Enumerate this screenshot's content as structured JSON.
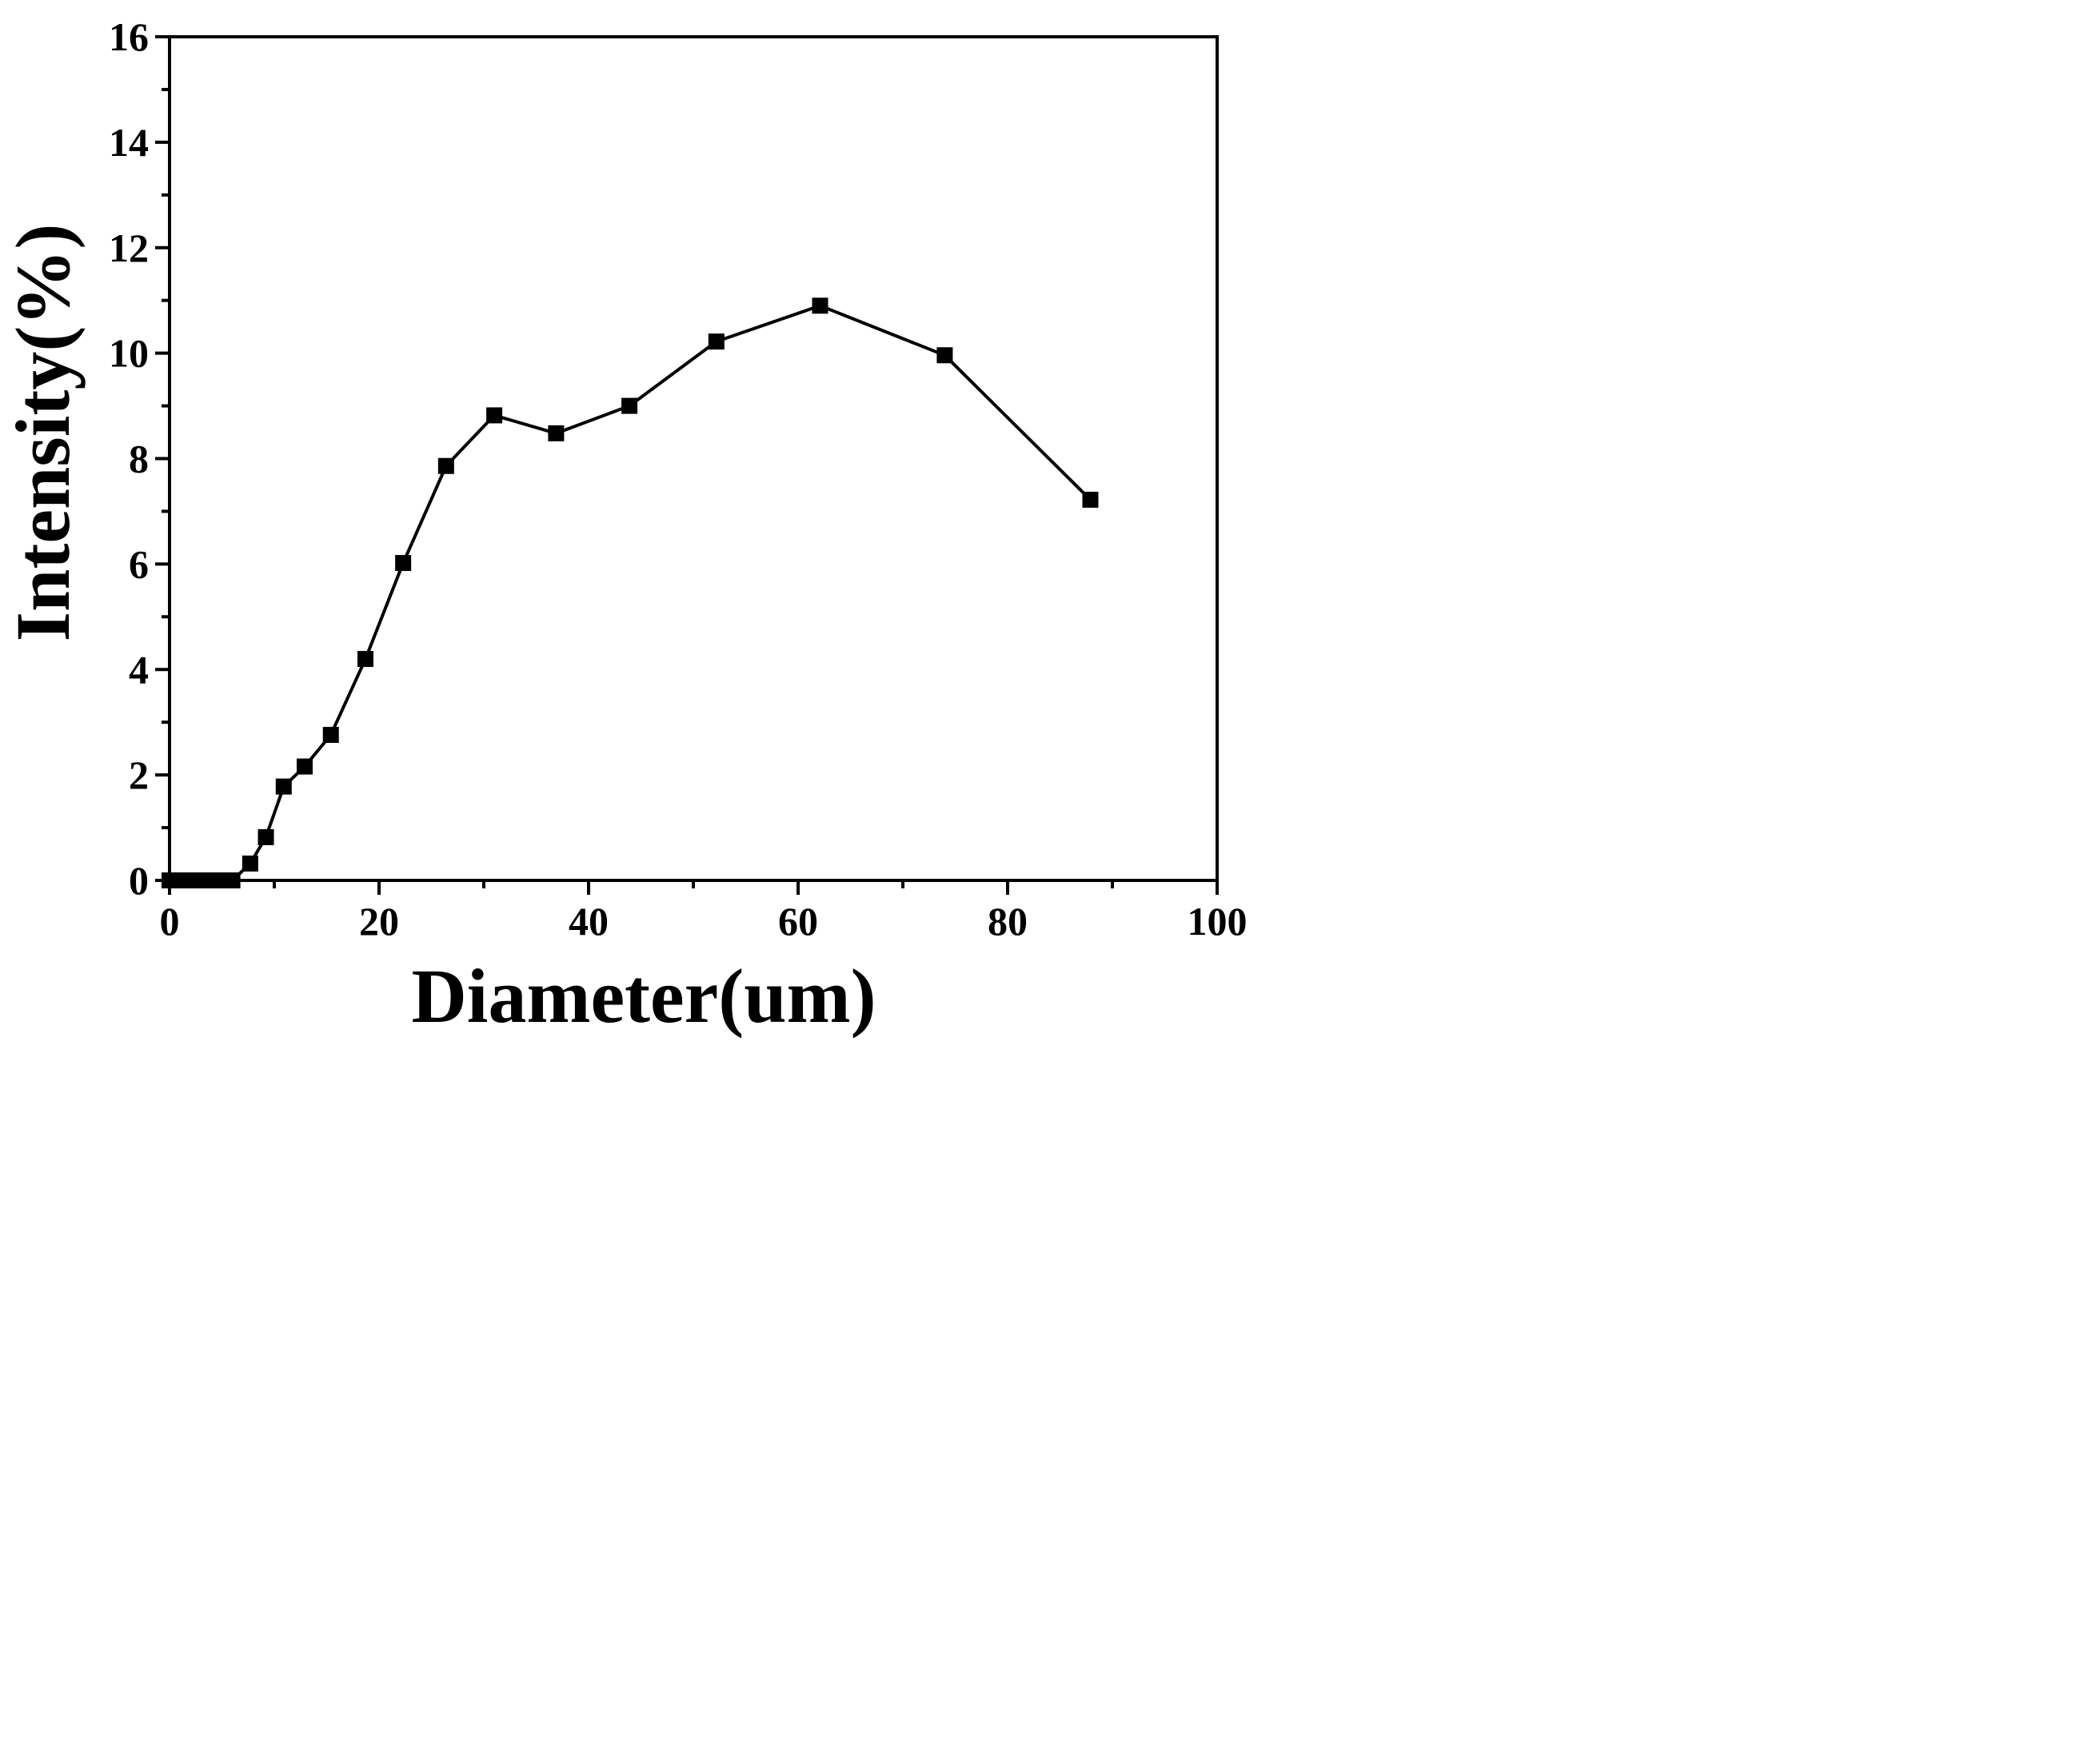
{
  "chart_data": {
    "type": "line",
    "title": "",
    "xlabel": "Diameter(um)",
    "ylabel": "Intensity(%)",
    "xlim": [
      0,
      100
    ],
    "ylim": [
      0,
      16
    ],
    "xticks": [
      0,
      20,
      40,
      60,
      80,
      100
    ],
    "xtick_labels": [
      "0",
      "20",
      "40",
      "60",
      "80",
      "100"
    ],
    "yticks": [
      0,
      2,
      4,
      6,
      8,
      10,
      12,
      14,
      16
    ],
    "ytick_labels": [
      "0",
      "2",
      "4",
      "6",
      "8",
      "10",
      "12",
      "14",
      "16"
    ],
    "x_minor_step": 10,
    "y_minor_step": 1,
    "grid": false,
    "legend": "none",
    "marker": "square",
    "line_color": "#000000",
    "marker_color": "#000000",
    "series": [
      {
        "x": [
          0,
          1,
          2,
          3,
          4,
          5,
          6,
          7.7,
          9.2,
          10.9,
          12.9,
          15.4,
          18.7,
          22.3,
          26.4,
          31.0,
          36.9,
          43.9,
          52.2,
          62.1,
          74.0,
          87.9
        ],
        "values": [
          0,
          0,
          0,
          0,
          0,
          0,
          0,
          0.32,
          0.82,
          1.78,
          2.16,
          2.76,
          4.2,
          6.02,
          7.86,
          8.82,
          8.48,
          9.0,
          10.22,
          10.9,
          9.96,
          7.22
        ]
      }
    ]
  }
}
